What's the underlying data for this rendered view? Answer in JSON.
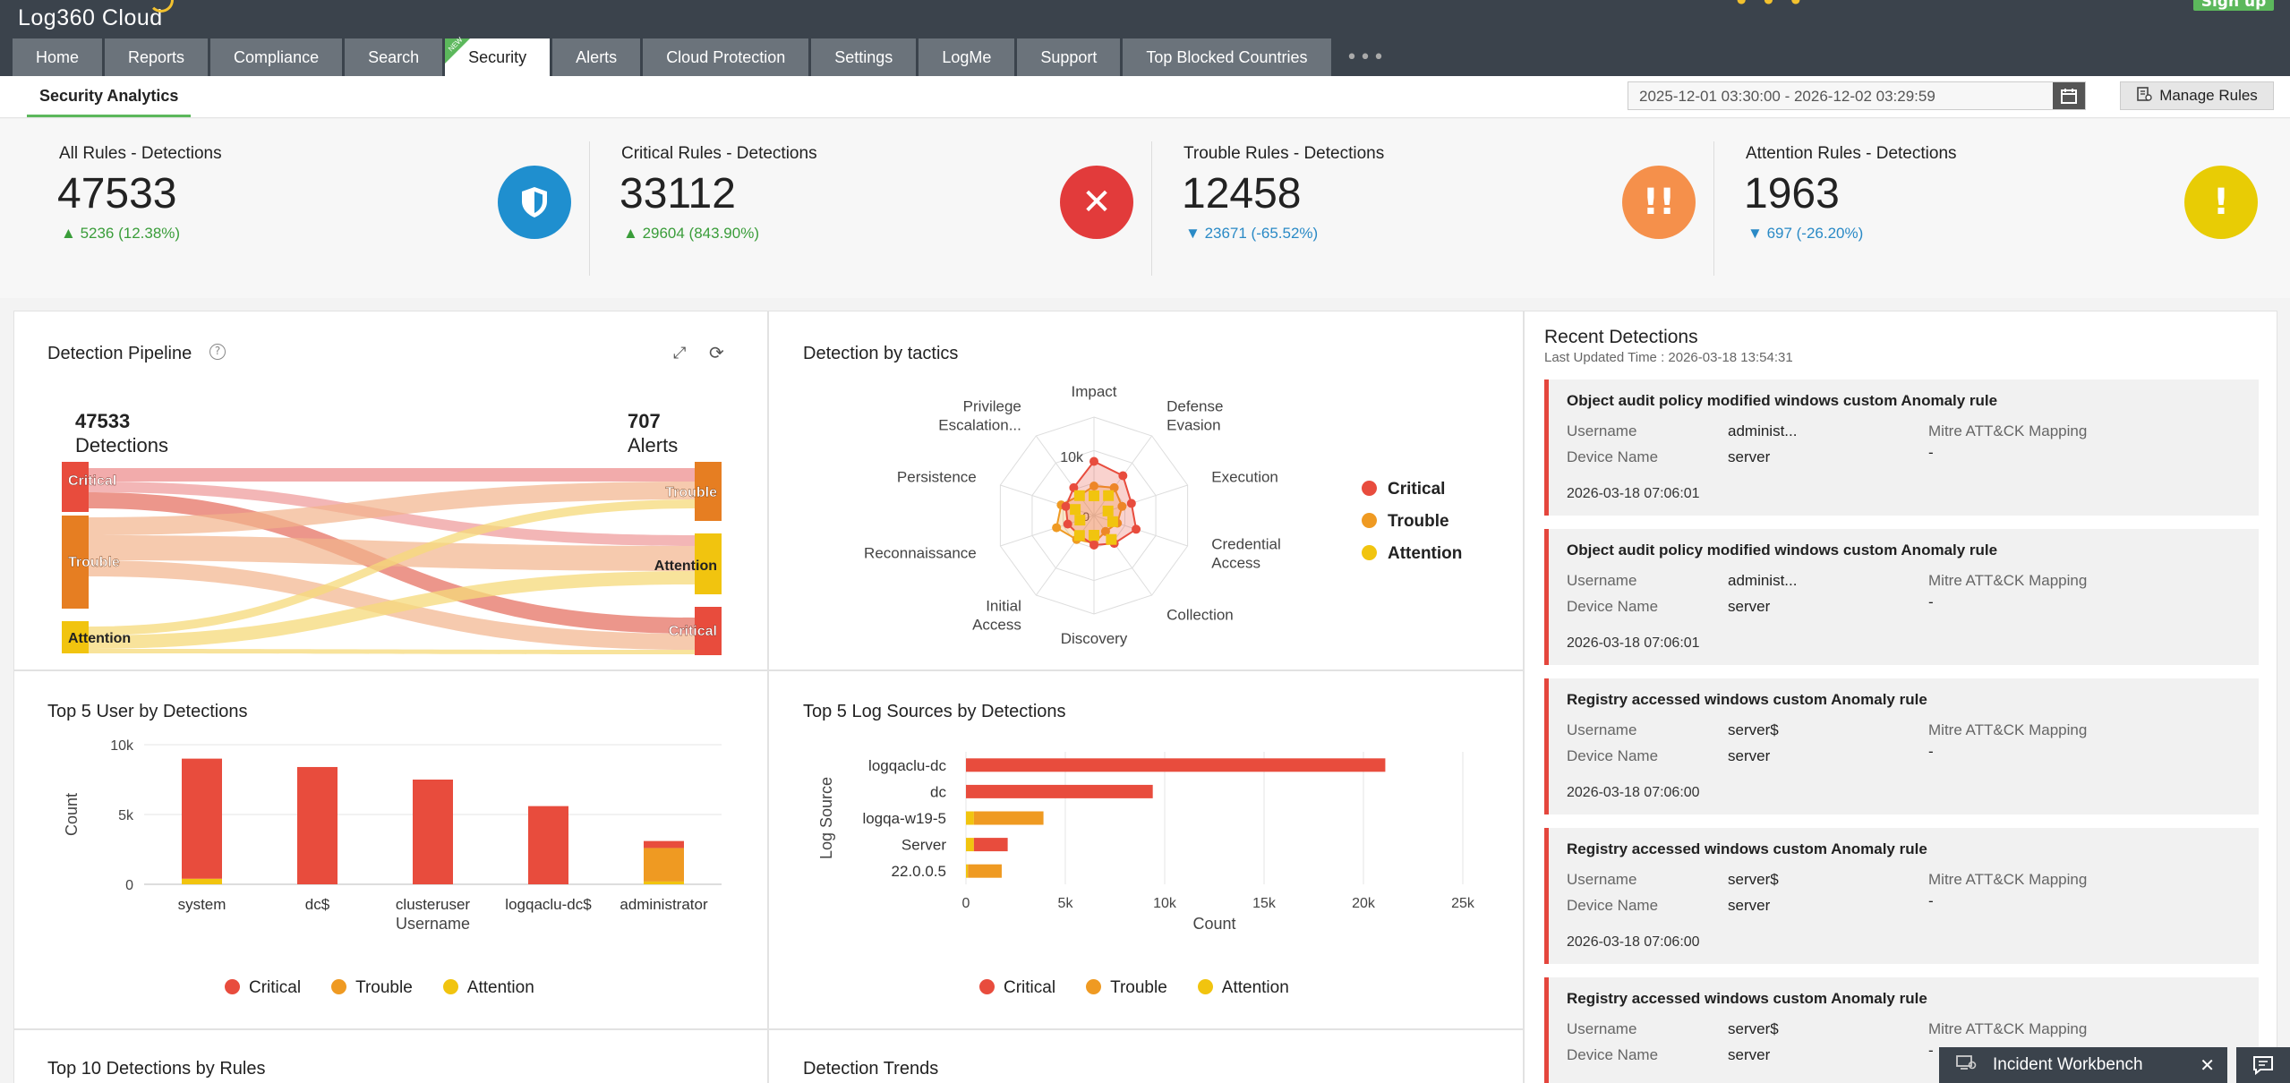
{
  "app": {
    "logo": "Log360 Cloud",
    "signup": "Sign up"
  },
  "nav": {
    "tabs": [
      "Home",
      "Reports",
      "Compliance",
      "Search",
      "Security",
      "Alerts",
      "Cloud Protection",
      "Settings",
      "LogMe",
      "Support",
      "Top Blocked Countries"
    ],
    "active": "Security",
    "new_badge": "NEW"
  },
  "subnav": {
    "tab": "Security Analytics",
    "date_range": "2025-12-01 03:30:00 - 2026-12-02 03:29:59",
    "manage_rules": "Manage Rules"
  },
  "stats": [
    {
      "title": "All Rules - Detections",
      "value": "47533",
      "change": "5236 (12.38%)",
      "dir": "up",
      "color": "#1f8fcf",
      "icon": "shield-icon"
    },
    {
      "title": "Critical Rules - Detections",
      "value": "33112",
      "change": "29604 (843.90%)",
      "dir": "up",
      "color": "#e23b3b",
      "icon": "close-circle-icon"
    },
    {
      "title": "Trouble Rules - Detections",
      "value": "12458",
      "change": "23671 (-65.52%)",
      "dir": "down",
      "color": "#f5904b",
      "icon": "double-exclamation-icon"
    },
    {
      "title": "Attention Rules - Detections",
      "value": "1963",
      "change": "697 (-26.20%)",
      "dir": "down",
      "color": "#e8cc05",
      "icon": "exclamation-icon"
    }
  ],
  "colors": {
    "critical": "#e84c3d",
    "trouble": "#ef9a22",
    "attention": "#f1c40f"
  },
  "pipeline": {
    "title": "Detection Pipeline",
    "left_value": "47533",
    "left_label": "Detections",
    "right_value": "707",
    "right_label": "Alerts",
    "left_nodes": [
      "Critical",
      "Trouble",
      "Attention"
    ],
    "right_nodes": [
      "Trouble",
      "Attention",
      "Critical"
    ]
  },
  "tactics": {
    "title": "Detection by tactics",
    "axes": [
      "Impact",
      "Defense Evasion",
      "Execution",
      "Credential Access",
      "Collection",
      "Discovery",
      "Initial Access",
      "Reconnaissance",
      "Persistence",
      "Privilege Escalation..."
    ],
    "ticks": [
      "10k",
      "0"
    ],
    "legend": [
      "Critical",
      "Trouble",
      "Attention"
    ]
  },
  "top_users": {
    "title": "Top 5 User by Detections",
    "chart_data": {
      "type": "bar",
      "categories": [
        "system",
        "dc$",
        "clusteruser",
        "logqaclu-dc$",
        "administrator"
      ],
      "series": [
        {
          "name": "Critical",
          "values": [
            8600,
            8400,
            7500,
            5600,
            500
          ]
        },
        {
          "name": "Trouble",
          "values": [
            0,
            0,
            0,
            0,
            2400
          ]
        },
        {
          "name": "Attention",
          "values": [
            400,
            0,
            0,
            0,
            200
          ]
        }
      ],
      "xlabel": "Username",
      "ylabel": "Count",
      "yticks": [
        "10k",
        "5k",
        "0"
      ],
      "ylim": [
        0,
        10000
      ]
    },
    "legend": [
      "Critical",
      "Trouble",
      "Attention"
    ]
  },
  "top_sources": {
    "title": "Top 5 Log Sources by Detections",
    "chart_data": {
      "type": "bar",
      "orientation": "horizontal",
      "categories": [
        "logqaclu-dc",
        "dc",
        "logqa-w19-5",
        "Server",
        "22.0.0.5"
      ],
      "series": [
        {
          "name": "Critical",
          "values": [
            21100,
            9400,
            0,
            1700,
            0
          ]
        },
        {
          "name": "Trouble",
          "values": [
            0,
            0,
            3500,
            0,
            1700
          ]
        },
        {
          "name": "Attention",
          "values": [
            0,
            0,
            400,
            400,
            100
          ]
        }
      ],
      "xlabel": "Count",
      "ylabel": "Log Source",
      "xticks": [
        "0",
        "5k",
        "10k",
        "15k",
        "20k",
        "25k"
      ],
      "xlim": [
        0,
        25000
      ]
    },
    "legend": [
      "Critical",
      "Trouble",
      "Attention"
    ]
  },
  "bottom_panels": {
    "left": "Top 10 Detections by Rules",
    "right": "Detection Trends"
  },
  "recent": {
    "title": "Recent Detections",
    "updated": "Last Updated Time : 2026-03-18 13:54:31",
    "labels": {
      "username": "Username",
      "device": "Device Name",
      "mitre": "Mitre ATT&CK Mapping"
    },
    "items": [
      {
        "rule": "Object audit policy modified windows custom Anomaly rule",
        "username": "administ...",
        "device": "server",
        "mitre": "-",
        "time": "2026-03-18 07:06:01"
      },
      {
        "rule": "Object audit policy modified windows custom Anomaly rule",
        "username": "administ...",
        "device": "server",
        "mitre": "-",
        "time": "2026-03-18 07:06:01"
      },
      {
        "rule": "Registry accessed windows custom Anomaly rule",
        "username": "server$",
        "device": "server",
        "mitre": "-",
        "time": "2026-03-18 07:06:00"
      },
      {
        "rule": "Registry accessed windows custom Anomaly rule",
        "username": "server$",
        "device": "server",
        "mitre": "-",
        "time": "2026-03-18 07:06:00"
      },
      {
        "rule": "Registry accessed windows custom Anomaly rule",
        "username": "server$",
        "device": "server",
        "mitre": "-",
        "time": ""
      }
    ]
  },
  "workbench": {
    "label": "Incident Workbench"
  }
}
